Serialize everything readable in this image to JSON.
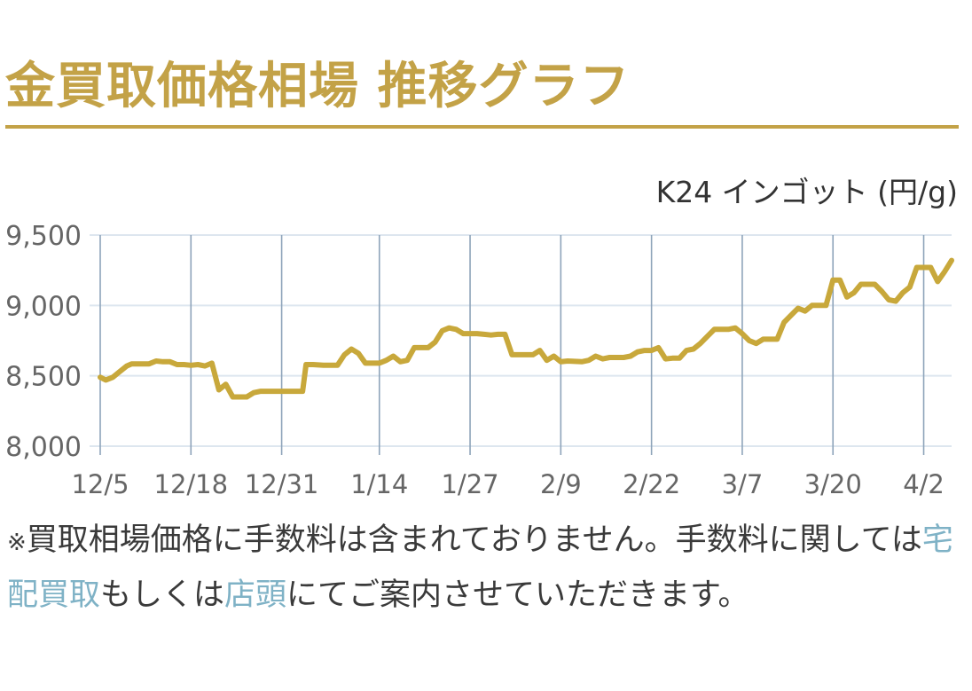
{
  "header": {
    "title": "金買取価格相場 推移グラフ"
  },
  "chart_data": {
    "type": "line",
    "title": "",
    "unit_label": "K24 インゴット (円/g)",
    "x_tick_labels": [
      "12/5",
      "12/18",
      "12/31",
      "1/14",
      "1/27",
      "2/9",
      "2/22",
      "3/7",
      "3/20",
      "4/2"
    ],
    "y_tick_labels": [
      "9,500",
      "9,000",
      "8,500",
      "8,000"
    ],
    "y_ticks": [
      9500,
      9000,
      8500,
      8000
    ],
    "ylim": [
      8000,
      9500
    ],
    "x_domain_days": [
      0,
      122
    ],
    "x_tick_days": [
      0,
      13,
      26,
      40,
      53,
      66,
      79,
      92,
      105,
      118
    ],
    "grid": true,
    "line_color": "#c8a83b",
    "series": [
      {
        "values": [
          [
            0,
            8490
          ],
          [
            0.8,
            8470
          ],
          [
            1.8,
            8490
          ],
          [
            2.8,
            8530
          ],
          [
            3.8,
            8570
          ],
          [
            4.5,
            8585
          ],
          [
            6,
            8585
          ],
          [
            7,
            8585
          ],
          [
            8,
            8605
          ],
          [
            9,
            8600
          ],
          [
            10,
            8600
          ],
          [
            11,
            8580
          ],
          [
            12,
            8580
          ],
          [
            13,
            8575
          ],
          [
            14,
            8580
          ],
          [
            15,
            8570
          ],
          [
            16,
            8590
          ],
          [
            17,
            8400
          ],
          [
            18,
            8440
          ],
          [
            19,
            8350
          ],
          [
            20,
            8350
          ],
          [
            21,
            8350
          ],
          [
            22,
            8380
          ],
          [
            23,
            8390
          ],
          [
            24,
            8390
          ],
          [
            26,
            8390
          ],
          [
            28,
            8390
          ],
          [
            29,
            8390
          ],
          [
            29.5,
            8580
          ],
          [
            30.5,
            8580
          ],
          [
            32,
            8575
          ],
          [
            34,
            8575
          ],
          [
            35,
            8650
          ],
          [
            36,
            8690
          ],
          [
            37,
            8660
          ],
          [
            38,
            8590
          ],
          [
            40,
            8590
          ],
          [
            41,
            8610
          ],
          [
            42,
            8640
          ],
          [
            43,
            8600
          ],
          [
            44,
            8610
          ],
          [
            45,
            8700
          ],
          [
            47,
            8700
          ],
          [
            48,
            8740
          ],
          [
            49,
            8820
          ],
          [
            50,
            8840
          ],
          [
            51,
            8830
          ],
          [
            52,
            8800
          ],
          [
            54,
            8800
          ],
          [
            55,
            8795
          ],
          [
            56,
            8790
          ],
          [
            57,
            8795
          ],
          [
            58,
            8795
          ],
          [
            59,
            8650
          ],
          [
            60,
            8650
          ],
          [
            61,
            8650
          ],
          [
            62,
            8650
          ],
          [
            63,
            8680
          ],
          [
            64,
            8610
          ],
          [
            65,
            8640
          ],
          [
            66,
            8600
          ],
          [
            67,
            8605
          ],
          [
            69,
            8600
          ],
          [
            70,
            8610
          ],
          [
            71,
            8640
          ],
          [
            72,
            8620
          ],
          [
            73,
            8630
          ],
          [
            75,
            8630
          ],
          [
            76,
            8640
          ],
          [
            77,
            8670
          ],
          [
            78,
            8680
          ],
          [
            79,
            8680
          ],
          [
            80,
            8700
          ],
          [
            81,
            8620
          ],
          [
            82,
            8625
          ],
          [
            83,
            8625
          ],
          [
            84,
            8680
          ],
          [
            85,
            8690
          ],
          [
            86,
            8730
          ],
          [
            87,
            8780
          ],
          [
            88,
            8830
          ],
          [
            89,
            8830
          ],
          [
            90,
            8830
          ],
          [
            91,
            8840
          ],
          [
            92,
            8800
          ],
          [
            93,
            8750
          ],
          [
            94,
            8730
          ],
          [
            95,
            8760
          ],
          [
            96,
            8760
          ],
          [
            97,
            8760
          ],
          [
            98,
            8880
          ],
          [
            99,
            8930
          ],
          [
            100,
            8980
          ],
          [
            101,
            8960
          ],
          [
            102,
            9000
          ],
          [
            103,
            9000
          ],
          [
            104,
            9000
          ],
          [
            105,
            9180
          ],
          [
            106,
            9180
          ],
          [
            107,
            9060
          ],
          [
            108,
            9090
          ],
          [
            109,
            9150
          ],
          [
            110,
            9150
          ],
          [
            111,
            9150
          ],
          [
            112,
            9100
          ],
          [
            113,
            9040
          ],
          [
            114,
            9030
          ],
          [
            115,
            9090
          ],
          [
            116,
            9130
          ],
          [
            117,
            9270
          ],
          [
            118,
            9270
          ],
          [
            119,
            9270
          ],
          [
            120,
            9170
          ],
          [
            121,
            9240
          ],
          [
            122,
            9320
          ]
        ]
      }
    ]
  },
  "note": {
    "prefix": "※",
    "text1": "買取相場価格に手数料は含まれておりません。手数料に関しては",
    "link1": "宅配買取",
    "text2": "もしくは",
    "link2": "店頭",
    "text3": "にてご案内させていただきます。"
  }
}
